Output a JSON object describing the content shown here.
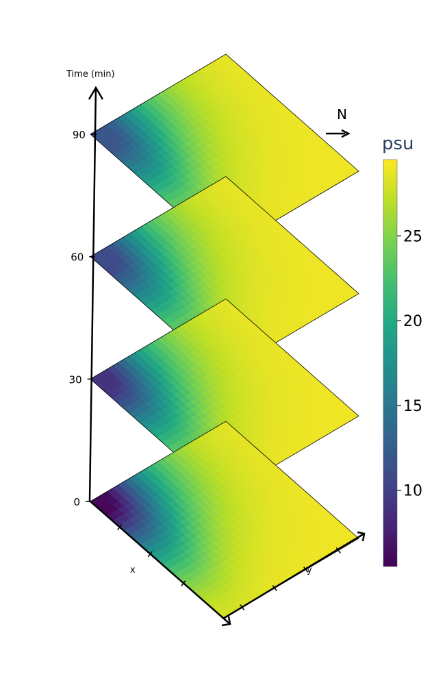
{
  "chart_data": {
    "type": "heatmap",
    "layout": "stacked 3D surfaces (slices over time)",
    "time_axis": {
      "label": "Time (min)",
      "ticks": [
        0,
        30,
        60,
        90
      ]
    },
    "x_axis": {
      "label": "x"
    },
    "y_axis": {
      "label": "y"
    },
    "north_label": "N",
    "slices": [
      {
        "time": 0,
        "min_psu": 6,
        "max_psu": 29,
        "fresh_corner": "x=0,y=0",
        "high_zone": "center-left"
      },
      {
        "time": 30,
        "min_psu": 9,
        "max_psu": 29,
        "fresh_corner": "x=0,y=0",
        "high_zone": "center"
      },
      {
        "time": 60,
        "min_psu": 11,
        "max_psu": 29,
        "fresh_corner": "x=0,y=0",
        "high_zone": "far side"
      },
      {
        "time": 90,
        "min_psu": 12,
        "max_psu": 29,
        "fresh_corner": "x=0,y=0",
        "high_zone": "far side"
      }
    ],
    "colorbar": {
      "title": "psu",
      "range": [
        5.5,
        29.5
      ],
      "ticks": [
        10,
        15,
        20,
        25
      ],
      "colorscale": "viridis"
    }
  }
}
